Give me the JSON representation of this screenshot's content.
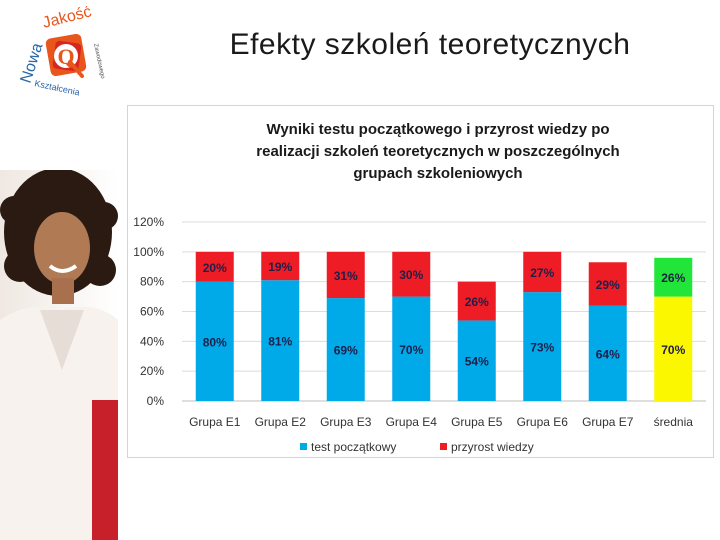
{
  "slide": {
    "title": "Efekty szkoleń teoretycznych"
  },
  "logo": {
    "word1": "Nowa",
    "word2": "Jakość",
    "word3": "Kształcenia",
    "tagline": "Zawodowego",
    "letter": "Q",
    "colors": {
      "orange": "#e8561c",
      "red": "#d7261f",
      "blue": "#2966a8"
    }
  },
  "chart_data": {
    "type": "bar",
    "stacked": true,
    "title": "Wyniki testu początkowego i przyrost wiedzy po realizacji szkoleń teoretycznych w poszczególnych grupach szkoleniowych",
    "title_lines": [
      "Wyniki testu początkowego i przyrost wiedzy po",
      "realizacji szkoleń teoretycznych w poszczególnych",
      "grupach szkoleniowych"
    ],
    "categories": [
      "Grupa  E1",
      "Grupa  E2",
      "Grupa  E3",
      "Grupa  E4",
      "Grupa  E5",
      "Grupa  E6",
      "Grupa  E7",
      "średnia"
    ],
    "series": [
      {
        "name": "test początkowy",
        "color": "#00a9e8",
        "values": [
          80,
          81,
          69,
          70,
          54,
          73,
          64,
          70
        ],
        "labels": [
          "80%",
          "81%",
          "69%",
          "70%",
          "54%",
          "73%",
          "64%",
          "70%"
        ]
      },
      {
        "name": "przyrost wiedzy",
        "color": "#ee1c25",
        "values": [
          20,
          19,
          31,
          30,
          26,
          27,
          29,
          26
        ],
        "labels": [
          "20%",
          "19%",
          "31%",
          "30%",
          "26%",
          "27%",
          "29%",
          "26%"
        ]
      }
    ],
    "highlight": {
      "category": "średnia",
      "base_color": "#fbf700",
      "top_color": "#22e53a"
    },
    "y_ticks": [
      "0%",
      "20%",
      "40%",
      "60%",
      "80%",
      "100%",
      "120%"
    ],
    "ylim": [
      0,
      120
    ],
    "grid": true,
    "legend_position": "bottom"
  }
}
